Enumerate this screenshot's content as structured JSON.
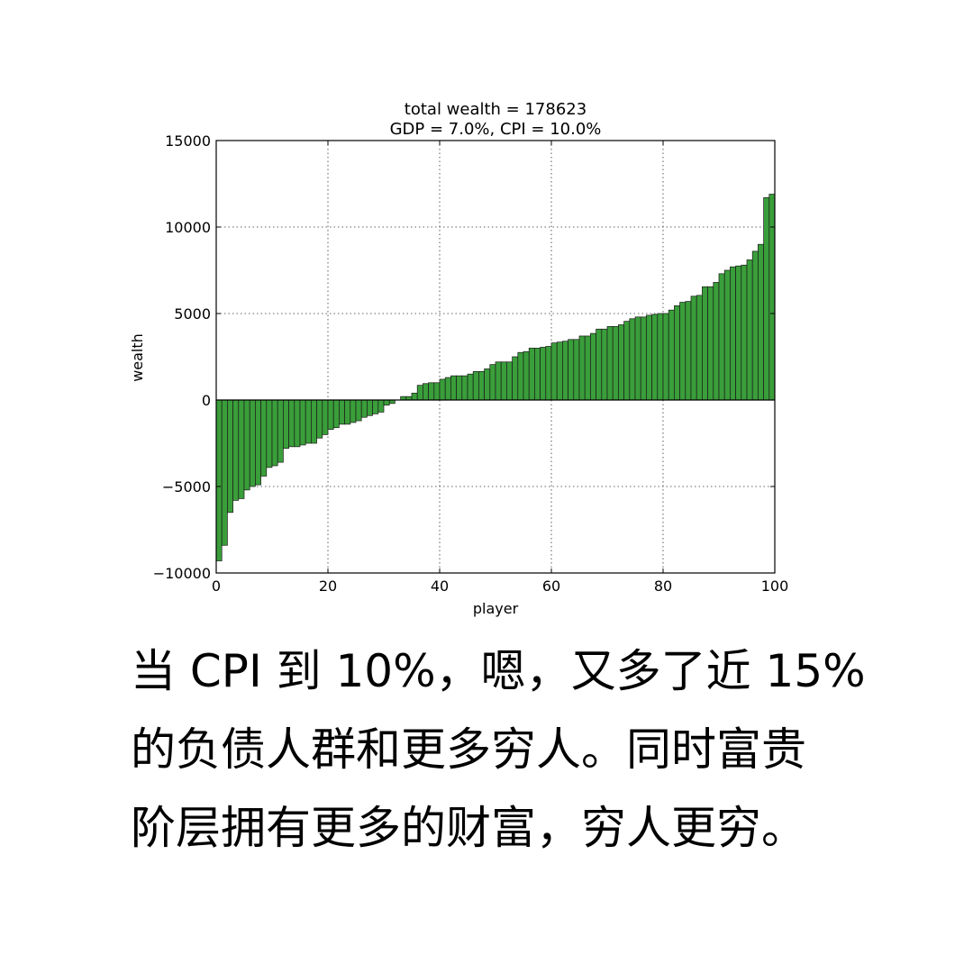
{
  "chart_data": {
    "type": "bar",
    "title": "total wealth = 178623",
    "subtitle": "GDP = 7.0%, CPI = 10.0%",
    "xlabel": "player",
    "ylabel": "wealth",
    "xlim": [
      0,
      100
    ],
    "ylim": [
      -10000,
      15000
    ],
    "xticks": [
      "0",
      "20",
      "40",
      "60",
      "80",
      "100"
    ],
    "yticks": [
      "15000",
      "10000",
      "5000",
      "0",
      "−5000",
      "−10000"
    ],
    "grid": true,
    "bar_color": "#3a9e3a",
    "x": [
      0,
      1,
      2,
      3,
      4,
      5,
      6,
      7,
      8,
      9,
      10,
      11,
      12,
      13,
      14,
      15,
      16,
      17,
      18,
      19,
      20,
      21,
      22,
      23,
      24,
      25,
      26,
      27,
      28,
      29,
      30,
      31,
      32,
      33,
      34,
      35,
      36,
      37,
      38,
      39,
      40,
      41,
      42,
      43,
      44,
      45,
      46,
      47,
      48,
      49,
      50,
      51,
      52,
      53,
      54,
      55,
      56,
      57,
      58,
      59,
      60,
      61,
      62,
      63,
      64,
      65,
      66,
      67,
      68,
      69,
      70,
      71,
      72,
      73,
      74,
      75,
      76,
      77,
      78,
      79,
      80,
      81,
      82,
      83,
      84,
      85,
      86,
      87,
      88,
      89,
      90,
      91,
      92,
      93,
      94,
      95,
      96,
      97,
      98,
      99
    ],
    "values": [
      -9300,
      -8400,
      -6500,
      -5800,
      -5700,
      -5200,
      -5000,
      -4900,
      -4400,
      -3900,
      -3800,
      -3600,
      -2800,
      -2700,
      -2700,
      -2600,
      -2500,
      -2500,
      -2200,
      -2000,
      -1700,
      -1600,
      -1400,
      -1400,
      -1300,
      -1200,
      -1000,
      -900,
      -800,
      -700,
      -300,
      -200,
      0,
      200,
      200,
      400,
      850,
      950,
      1000,
      1000,
      1200,
      1300,
      1400,
      1400,
      1400,
      1500,
      1650,
      1650,
      1800,
      2050,
      2200,
      2200,
      2200,
      2500,
      2750,
      2800,
      3000,
      3000,
      3050,
      3100,
      3300,
      3350,
      3400,
      3500,
      3500,
      3700,
      3700,
      3850,
      4100,
      4100,
      4250,
      4250,
      4350,
      4550,
      4700,
      4800,
      4800,
      4900,
      4950,
      5000,
      5000,
      5200,
      5450,
      5650,
      5700,
      6000,
      6050,
      6550,
      6550,
      6800,
      7300,
      7500,
      7700,
      7750,
      7800,
      8100,
      8600,
      9000,
      11700,
      11900
    ]
  },
  "caption": {
    "lines": [
      "当 CPI 到 10%，嗯，又多了近 15%",
      "的负债人群和更多穷人。同时富贵",
      "阶层拥有更多的财富，穷人更穷。"
    ]
  }
}
